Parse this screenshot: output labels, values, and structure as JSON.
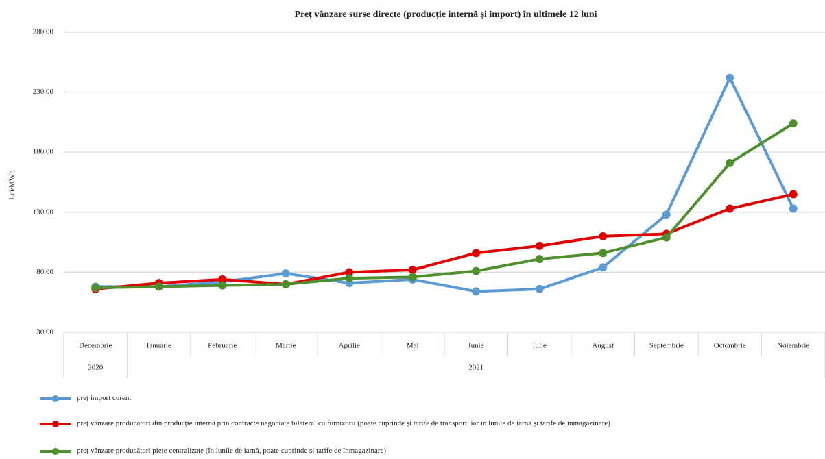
{
  "chart_data": {
    "type": "line",
    "title": "Preț vânzare surse directe (producție internă și import) în ultimele 12 luni",
    "y_label": "Lei/MWh",
    "categories": [
      "Decembrie",
      "Ianuarie",
      "Februarie",
      "Martie",
      "Aprilie",
      "Mai",
      "Iunie",
      "Iulie",
      "August",
      "Septembrie",
      "Octombrie",
      "Noiembrie"
    ],
    "year_groups": [
      {
        "label": "2020",
        "count": 1
      },
      {
        "label": "2021",
        "count": 11
      }
    ],
    "series": [
      {
        "name": "preț import curent",
        "color": "#5b9bd5",
        "values": [
          68,
          68,
          72,
          79,
          71,
          74,
          64,
          66,
          84,
          128,
          242,
          133
        ]
      },
      {
        "name": "preț vânzare producători din producție internă prin contracte negociate bilateral cu furnizorii (poate cuprinde și tarife de transport, iar în lunile de iarnă și tarife de înmagazinare)",
        "color": "#e00000",
        "values": [
          66,
          71,
          74,
          70,
          80,
          82,
          96,
          102,
          110,
          112,
          133,
          145
        ]
      },
      {
        "name": "preț vânzare producători piețe centralizate (în lunile de iarnă, poate cuprinde și tarife de înmagazinare)",
        "color": "#4e8f2e",
        "values": [
          67,
          68,
          69,
          70,
          75,
          76,
          81,
          91,
          96,
          109,
          171,
          204
        ]
      }
    ],
    "ylim": [
      30,
      280
    ],
    "yticks": [
      {
        "value": 30,
        "label": "30.00"
      },
      {
        "value": 80,
        "label": "80.00"
      },
      {
        "value": 130,
        "label": "130.00"
      },
      {
        "value": 180,
        "label": "180.00"
      },
      {
        "value": 230,
        "label": "230.00"
      },
      {
        "value": 280,
        "label": "280.00"
      }
    ],
    "grid": true
  }
}
